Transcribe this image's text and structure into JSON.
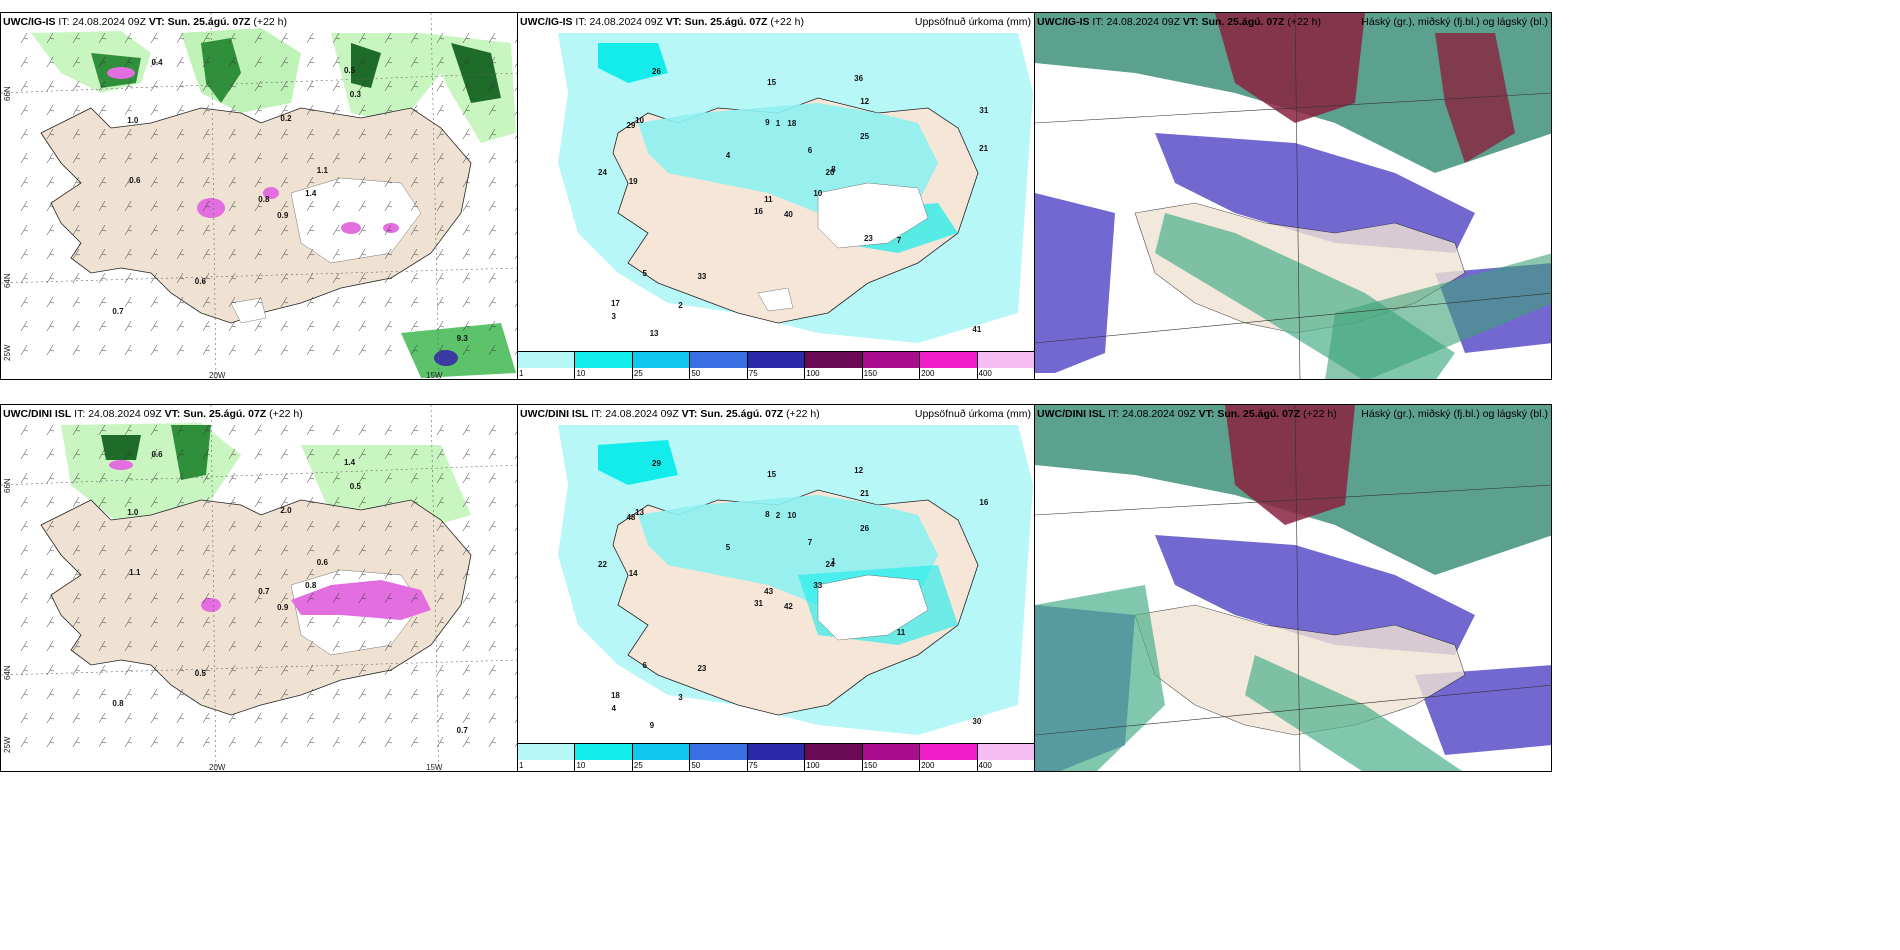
{
  "rows": [
    {
      "model": "UWC/IG-IS",
      "it_label": "IT:",
      "it_value": "24.08.2024 09Z",
      "vt_label": "VT:",
      "vt_value": "Sun. 25.ágú. 07Z",
      "lead": "(+22 h)"
    },
    {
      "model": "UWC/DINI ISL",
      "it_label": "IT:",
      "it_value": "24.08.2024 09Z",
      "vt_label": "VT:",
      "vt_value": "Sun. 25.ágú. 07Z",
      "lead": "(+22 h)"
    }
  ],
  "precip_title": "Uppsöfnuð úrkoma (mm)",
  "cloud_title": "Háský (gr.), miðský (fj.bl.) og lágský (bl.)",
  "axis_labels": {
    "lat_66": "66N",
    "lat_64": "64N",
    "lon_25": "25W",
    "lon_20": "20W",
    "lon_15": "15W"
  },
  "colorbar": [
    {
      "tick": "1",
      "color": "#b7f7f7"
    },
    {
      "tick": "10",
      "color": "#14ecec"
    },
    {
      "tick": "25",
      "color": "#12c6ee"
    },
    {
      "tick": "50",
      "color": "#3a6fe6"
    },
    {
      "tick": "75",
      "color": "#2a2aa8"
    },
    {
      "tick": "100",
      "color": "#6a0a52"
    },
    {
      "tick": "150",
      "color": "#a80e8c"
    },
    {
      "tick": "200",
      "color": "#f01ec8"
    },
    {
      "tick": "400",
      "color": "#f5bdf2"
    }
  ],
  "precip_values_top": [
    "40",
    "29",
    "11",
    "17",
    "20",
    "33",
    "36",
    "18",
    "12",
    "10",
    "26",
    "41",
    "19",
    "31",
    "16",
    "25",
    "13",
    "9",
    "6",
    "5",
    "4",
    "3",
    "2",
    "1",
    "8",
    "7",
    "10",
    "15",
    "24",
    "23",
    "21"
  ],
  "precip_values_bottom": [
    "42",
    "48",
    "43",
    "18",
    "24",
    "23",
    "12",
    "10",
    "21",
    "33",
    "29",
    "30",
    "14",
    "16",
    "31",
    "26",
    "9",
    "8",
    "7",
    "6",
    "5",
    "4",
    "3",
    "2",
    "1",
    "11",
    "13",
    "15",
    "22"
  ],
  "wind_values_top": [
    "0.9",
    "1.0",
    "0.8",
    "0.7",
    "1.1",
    "0.6",
    "0.5",
    "0.2",
    "0.3",
    "1.4",
    "0.4",
    "9.3",
    "0.6"
  ],
  "wind_values_bottom": [
    "0.9",
    "1.0",
    "0.7",
    "0.8",
    "0.6",
    "0.5",
    "1.4",
    "2.0",
    "0.5",
    "0.8",
    "0.6",
    "0.7",
    "1.1"
  ]
}
